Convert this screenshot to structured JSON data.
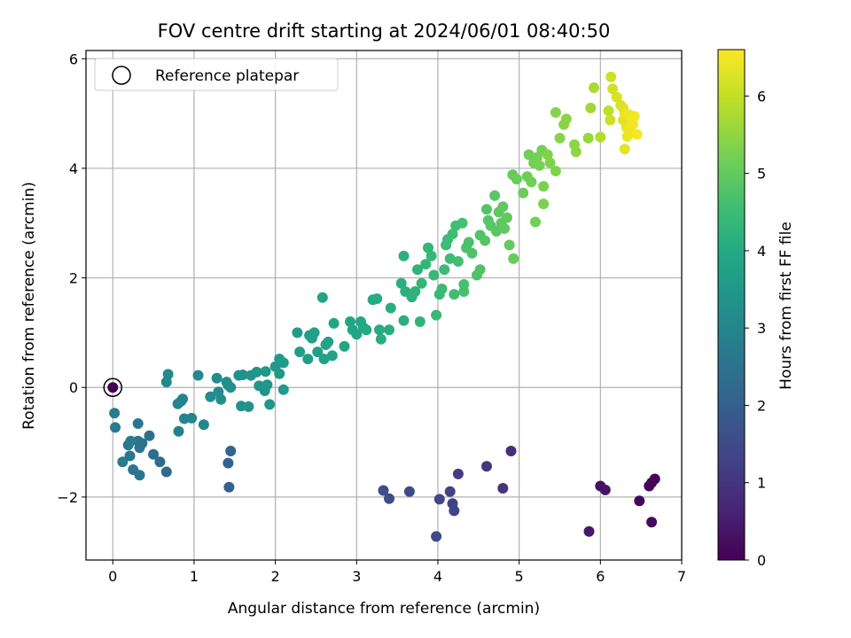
{
  "chart_data": {
    "type": "scatter",
    "title": "FOV centre drift starting at 2024/06/01 08:40:50",
    "xlabel": "Angular distance from reference (arcmin)",
    "ylabel": "Rotation from reference (arcmin)",
    "xlim": [
      -0.33,
      7.0
    ],
    "ylim": [
      -3.15,
      6.15
    ],
    "xticks": [
      0,
      1,
      2,
      3,
      4,
      5,
      6,
      7
    ],
    "yticks": [
      -2,
      0,
      2,
      4,
      6
    ],
    "grid": true,
    "legend": {
      "entries": [
        "Reference platepar"
      ],
      "location": "top-left"
    },
    "colorbar": {
      "label": "Hours from first FF file",
      "colormap": "viridis",
      "range": [
        0,
        6.6
      ],
      "ticks": [
        0,
        1,
        2,
        3,
        4,
        5,
        6
      ]
    },
    "reference_point": {
      "x": 0,
      "y": 0,
      "hours": 0
    },
    "points": [
      [
        6.67,
        -1.67,
        0.05
      ],
      [
        6.6,
        -1.8,
        0.08
      ],
      [
        6.63,
        -1.74,
        0.1
      ],
      [
        6.48,
        -2.07,
        0.15
      ],
      [
        6.63,
        -2.46,
        0.18
      ],
      [
        6.0,
        -1.8,
        0.3
      ],
      [
        6.06,
        -1.87,
        0.35
      ],
      [
        5.86,
        -2.63,
        0.45
      ],
      [
        4.9,
        -1.16,
        0.9
      ],
      [
        4.8,
        -1.84,
        1.0
      ],
      [
        4.6,
        -1.44,
        1.05
      ],
      [
        4.25,
        -1.58,
        1.15
      ],
      [
        4.15,
        -1.9,
        1.25
      ],
      [
        4.18,
        -2.12,
        1.3
      ],
      [
        4.2,
        -2.25,
        1.32
      ],
      [
        4.02,
        -2.04,
        1.4
      ],
      [
        3.98,
        -2.72,
        1.45
      ],
      [
        3.65,
        -1.9,
        1.5
      ],
      [
        3.4,
        -2.03,
        1.55
      ],
      [
        3.33,
        -1.88,
        1.6
      ],
      [
        1.43,
        -1.82,
        2.05
      ],
      [
        1.42,
        -1.38,
        2.1
      ],
      [
        1.45,
        -1.16,
        2.15
      ],
      [
        0.66,
        -1.54,
        2.25
      ],
      [
        0.58,
        -1.36,
        2.3
      ],
      [
        0.5,
        -1.22,
        2.35
      ],
      [
        0.45,
        -0.88,
        2.4
      ],
      [
        0.36,
        -1.02,
        2.45
      ],
      [
        0.33,
        -1.1,
        2.5
      ],
      [
        0.31,
        -0.98,
        2.52
      ],
      [
        0.33,
        -1.6,
        2.55
      ],
      [
        0.31,
        -0.66,
        2.58
      ],
      [
        0.25,
        -1.5,
        2.6
      ],
      [
        0.21,
        -1.25,
        2.62
      ],
      [
        0.19,
        -1.05,
        2.65
      ],
      [
        0.22,
        -0.98,
        2.67
      ],
      [
        0.12,
        -1.36,
        2.7
      ],
      [
        0.03,
        -0.73,
        2.72
      ],
      [
        0.02,
        -0.47,
        2.75
      ],
      [
        0.81,
        -0.8,
        2.85
      ],
      [
        0.84,
        -0.25,
        2.9
      ],
      [
        0.8,
        -0.3,
        2.92
      ],
      [
        0.86,
        -0.21,
        2.95
      ],
      [
        0.88,
        -0.57,
        2.98
      ],
      [
        0.97,
        -0.56,
        3.0
      ],
      [
        1.12,
        -0.68,
        3.02
      ],
      [
        0.66,
        0.1,
        3.05
      ],
      [
        0.68,
        0.24,
        3.08
      ],
      [
        1.05,
        0.22,
        3.1
      ],
      [
        1.2,
        -0.17,
        3.12
      ],
      [
        1.28,
        0.17,
        3.15
      ],
      [
        1.3,
        -0.08,
        3.17
      ],
      [
        1.33,
        -0.22,
        3.19
      ],
      [
        1.4,
        0.1,
        3.21
      ],
      [
        1.42,
        0.04,
        3.23
      ],
      [
        1.45,
        0.0,
        3.25
      ],
      [
        1.55,
        0.22,
        3.27
      ],
      [
        1.6,
        0.23,
        3.29
      ],
      [
        1.58,
        -0.34,
        3.31
      ],
      [
        1.67,
        -0.35,
        3.33
      ],
      [
        1.7,
        0.22,
        3.35
      ],
      [
        1.77,
        0.28,
        3.38
      ],
      [
        1.8,
        0.03,
        3.4
      ],
      [
        1.87,
        -0.06,
        3.42
      ],
      [
        1.88,
        0.29,
        3.44
      ],
      [
        1.93,
        -0.31,
        3.46
      ],
      [
        1.9,
        0.05,
        3.48
      ],
      [
        2.0,
        0.38,
        3.5
      ],
      [
        2.05,
        0.52,
        3.52
      ],
      [
        2.05,
        0.25,
        3.54
      ],
      [
        2.1,
        -0.04,
        3.56
      ],
      [
        2.1,
        0.45,
        3.58
      ],
      [
        2.27,
        1.0,
        3.62
      ],
      [
        2.3,
        0.65,
        3.64
      ],
      [
        2.4,
        0.52,
        3.66
      ],
      [
        2.42,
        0.95,
        3.68
      ],
      [
        2.45,
        0.9,
        3.7
      ],
      [
        2.48,
        1.0,
        3.72
      ],
      [
        2.52,
        0.65,
        3.74
      ],
      [
        2.6,
        0.52,
        3.76
      ],
      [
        2.62,
        0.78,
        3.78
      ],
      [
        2.65,
        0.83,
        3.8
      ],
      [
        2.7,
        0.58,
        3.82
      ],
      [
        2.58,
        1.64,
        3.84
      ],
      [
        2.72,
        1.17,
        3.86
      ],
      [
        2.85,
        0.75,
        3.88
      ],
      [
        2.92,
        1.2,
        3.9
      ],
      [
        2.95,
        1.05,
        3.92
      ],
      [
        3.0,
        0.97,
        3.94
      ],
      [
        3.05,
        1.2,
        3.96
      ],
      [
        3.08,
        1.1,
        3.98
      ],
      [
        3.12,
        1.05,
        4.0
      ],
      [
        3.2,
        1.6,
        4.02
      ],
      [
        3.25,
        1.62,
        4.04
      ],
      [
        3.28,
        1.05,
        4.06
      ],
      [
        3.3,
        0.88,
        4.08
      ],
      [
        3.4,
        1.05,
        4.1
      ],
      [
        3.42,
        1.45,
        4.12
      ],
      [
        3.55,
        1.9,
        4.14
      ],
      [
        3.58,
        1.22,
        4.16
      ],
      [
        3.58,
        2.4,
        4.18
      ],
      [
        3.6,
        1.75,
        4.2
      ],
      [
        3.68,
        1.65,
        4.22
      ],
      [
        3.72,
        1.75,
        4.24
      ],
      [
        3.75,
        2.15,
        4.26
      ],
      [
        3.78,
        1.2,
        4.28
      ],
      [
        3.8,
        1.9,
        4.3
      ],
      [
        3.85,
        2.25,
        4.32
      ],
      [
        3.88,
        2.55,
        4.34
      ],
      [
        3.92,
        2.4,
        4.36
      ],
      [
        3.98,
        1.32,
        4.38
      ],
      [
        3.95,
        2.05,
        4.4
      ],
      [
        4.02,
        1.7,
        4.42
      ],
      [
        4.05,
        1.8,
        4.44
      ],
      [
        4.08,
        2.15,
        4.46
      ],
      [
        4.1,
        2.6,
        4.48
      ],
      [
        4.12,
        2.7,
        4.5
      ],
      [
        4.15,
        2.35,
        4.52
      ],
      [
        4.18,
        2.8,
        4.54
      ],
      [
        4.2,
        1.7,
        4.56
      ],
      [
        4.22,
        2.95,
        4.58
      ],
      [
        4.25,
        2.3,
        4.6
      ],
      [
        4.3,
        3.0,
        4.62
      ],
      [
        4.32,
        1.75,
        4.64
      ],
      [
        4.32,
        1.88,
        4.66
      ],
      [
        4.35,
        2.55,
        4.68
      ],
      [
        4.38,
        2.65,
        4.7
      ],
      [
        4.42,
        2.45,
        4.72
      ],
      [
        4.48,
        2.05,
        4.74
      ],
      [
        4.52,
        2.15,
        4.76
      ],
      [
        4.52,
        2.78,
        4.78
      ],
      [
        4.58,
        2.68,
        4.8
      ],
      [
        4.6,
        3.25,
        4.82
      ],
      [
        4.62,
        3.05,
        4.84
      ],
      [
        4.65,
        2.95,
        4.86
      ],
      [
        4.7,
        3.5,
        4.88
      ],
      [
        4.72,
        2.85,
        4.9
      ],
      [
        4.75,
        3.2,
        4.92
      ],
      [
        4.78,
        3.0,
        4.94
      ],
      [
        4.8,
        3.3,
        4.96
      ],
      [
        4.82,
        2.9,
        4.98
      ],
      [
        4.85,
        3.1,
        5.0
      ],
      [
        4.88,
        2.6,
        5.02
      ],
      [
        4.92,
        3.88,
        5.04
      ],
      [
        4.93,
        2.35,
        5.06
      ],
      [
        4.97,
        3.8,
        5.08
      ],
      [
        5.05,
        3.55,
        5.1
      ],
      [
        5.1,
        3.85,
        5.12
      ],
      [
        5.12,
        4.25,
        5.14
      ],
      [
        5.15,
        3.75,
        5.16
      ],
      [
        5.18,
        4.1,
        5.18
      ],
      [
        5.2,
        3.02,
        5.2
      ],
      [
        5.22,
        4.2,
        5.22
      ],
      [
        5.25,
        4.05,
        5.24
      ],
      [
        5.28,
        4.33,
        5.26
      ],
      [
        5.3,
        3.67,
        5.28
      ],
      [
        5.3,
        3.35,
        5.3
      ],
      [
        5.35,
        4.25,
        5.32
      ],
      [
        5.38,
        4.1,
        5.34
      ],
      [
        5.45,
        3.95,
        5.36
      ],
      [
        5.45,
        5.02,
        5.38
      ],
      [
        5.5,
        4.55,
        5.4
      ],
      [
        5.55,
        4.8,
        5.42
      ],
      [
        5.58,
        4.9,
        5.44
      ],
      [
        5.68,
        4.43,
        5.46
      ],
      [
        5.7,
        4.3,
        5.48
      ],
      [
        5.85,
        4.55,
        5.55
      ],
      [
        5.88,
        5.1,
        5.65
      ],
      [
        5.92,
        5.47,
        5.75
      ],
      [
        6.0,
        4.57,
        5.85
      ],
      [
        6.1,
        5.05,
        5.95
      ],
      [
        6.12,
        4.88,
        6.05
      ],
      [
        6.13,
        5.67,
        6.1
      ],
      [
        6.15,
        5.45,
        6.15
      ],
      [
        6.2,
        5.3,
        6.2
      ],
      [
        6.25,
        5.15,
        6.25
      ],
      [
        6.28,
        5.1,
        6.28
      ],
      [
        6.28,
        4.88,
        6.3
      ],
      [
        6.3,
        4.35,
        6.32
      ],
      [
        6.3,
        5.0,
        6.35
      ],
      [
        6.32,
        4.75,
        6.38
      ],
      [
        6.33,
        4.58,
        6.4
      ],
      [
        6.35,
        4.98,
        6.42
      ],
      [
        6.35,
        4.7,
        6.44
      ],
      [
        6.38,
        4.88,
        6.46
      ],
      [
        6.4,
        4.8,
        6.48
      ],
      [
        6.42,
        4.95,
        6.5
      ],
      [
        6.45,
        4.62,
        6.55
      ]
    ]
  }
}
